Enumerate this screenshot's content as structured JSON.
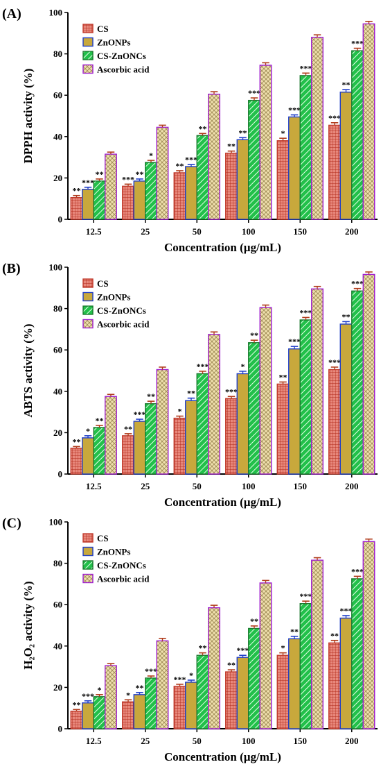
{
  "series_styles": [
    {
      "name": "CS",
      "fill": "#e8887c",
      "edge": "#c0392b",
      "pattern": "grid"
    },
    {
      "name": "ZnONPs",
      "fill": "#c8a83c",
      "edge": "#1f3ec8",
      "pattern": "none"
    },
    {
      "name": "CS-ZnONCs",
      "fill": "#22c04a",
      "edge": "#1a7a2e",
      "pattern": "diag"
    },
    {
      "name": "Ascorbic acid",
      "fill": "#efe0ad",
      "edge": "#a020d0",
      "pattern": "cross"
    }
  ],
  "error_color": "#b03a1a",
  "chart_data": [
    {
      "panel": "(A)",
      "type": "bar",
      "xlabel": "Concentration (µg/mL)",
      "ylabel": "DPPH activity (%)",
      "ylim": [
        0,
        100
      ],
      "yticks": [
        0,
        20,
        40,
        60,
        80,
        100
      ],
      "categories": [
        "12.5",
        "25",
        "50",
        "100",
        "150",
        "200"
      ],
      "legend_position": "top-left",
      "series": [
        {
          "name": "CS",
          "values": [
            10.5,
            16,
            22.5,
            32,
            38,
            45.5
          ],
          "errors": [
            1,
            1,
            1,
            1,
            1.2,
            1.2
          ],
          "sig": [
            "**",
            "***",
            "**",
            "**",
            "*",
            "***"
          ]
        },
        {
          "name": "ZnONPs",
          "values": [
            14.5,
            18.5,
            25.5,
            38.5,
            49.5,
            61.5
          ],
          "errors": [
            1,
            1,
            1,
            1,
            1,
            1.2
          ],
          "sig": [
            "***",
            "**",
            "***",
            "**",
            "***",
            "**"
          ]
        },
        {
          "name": "CS-ZnONCs",
          "values": [
            18.5,
            27.5,
            40.5,
            57.5,
            69.5,
            81.5
          ],
          "errors": [
            1,
            1,
            1,
            1.2,
            1.2,
            1.2
          ],
          "sig": [
            "**",
            "*",
            "**",
            "***",
            "***",
            "***"
          ]
        },
        {
          "name": "Ascorbic acid",
          "values": [
            31.5,
            44.5,
            60.5,
            74.5,
            88,
            94.5
          ],
          "errors": [
            1,
            1,
            1.2,
            1.2,
            1.2,
            1.2
          ],
          "sig": [
            "",
            "",
            "",
            "",
            "",
            ""
          ]
        }
      ]
    },
    {
      "panel": "(B)",
      "type": "bar",
      "xlabel": "Concentration (µg/mL)",
      "ylabel": "ABTS activity (%)",
      "ylim": [
        0,
        100
      ],
      "yticks": [
        0,
        20,
        40,
        60,
        80,
        100
      ],
      "categories": [
        "12.5",
        "25",
        "50",
        "100",
        "150",
        "200"
      ],
      "legend_position": "top-left",
      "series": [
        {
          "name": "CS",
          "values": [
            12.5,
            18.5,
            27,
            36.5,
            43.5,
            50.5
          ],
          "errors": [
            0.8,
            1,
            1,
            1,
            1,
            1.2
          ],
          "sig": [
            "**",
            "**",
            "*",
            "***",
            "**",
            "***"
          ]
        },
        {
          "name": "ZnONPs",
          "values": [
            17.5,
            25.5,
            35.5,
            48.5,
            60.5,
            72.5
          ],
          "errors": [
            1,
            1,
            1.2,
            1.2,
            1.2,
            1.2
          ],
          "sig": [
            "*",
            "***",
            "**",
            "*",
            "***",
            "**"
          ]
        },
        {
          "name": "CS-ZnONCs",
          "values": [
            22.5,
            34,
            48.5,
            63.5,
            74.5,
            88.5
          ],
          "errors": [
            1,
            1.2,
            1.2,
            1.2,
            1.2,
            1.2
          ],
          "sig": [
            "**",
            "**",
            "***",
            "**",
            "***",
            "***"
          ]
        },
        {
          "name": "Ascorbic acid",
          "values": [
            37.5,
            50.5,
            67.5,
            80.5,
            89.5,
            96.5
          ],
          "errors": [
            1,
            1.2,
            1.2,
            1.2,
            1.2,
            1.2
          ],
          "sig": [
            "",
            "",
            "",
            "",
            "",
            ""
          ]
        }
      ]
    },
    {
      "panel": "(C)",
      "type": "bar",
      "xlabel": "Concentration (µg/mL)",
      "ylabel": "H₂O₂ activity (%)",
      "ylim": [
        0,
        100
      ],
      "yticks": [
        0,
        20,
        40,
        60,
        80,
        100
      ],
      "categories": [
        "12.5",
        "25",
        "50",
        "100",
        "150",
        "200"
      ],
      "legend_position": "top-left",
      "series": [
        {
          "name": "CS",
          "values": [
            8.5,
            13,
            20.5,
            27.5,
            35.5,
            41.5
          ],
          "errors": [
            0.8,
            1,
            1,
            1,
            1.2,
            1.2
          ],
          "sig": [
            "**",
            "*",
            "***",
            "**",
            "*",
            "**"
          ]
        },
        {
          "name": "ZnONPs",
          "values": [
            12.5,
            16.5,
            22.5,
            34.5,
            43.5,
            53.5
          ],
          "errors": [
            1,
            1,
            1,
            1,
            1.2,
            1.2
          ],
          "sig": [
            "***",
            "**",
            "*",
            "***",
            "**",
            "***"
          ]
        },
        {
          "name": "CS-ZnONCs",
          "values": [
            15.5,
            24.5,
            35.5,
            48.5,
            60.5,
            72.5
          ],
          "errors": [
            1,
            1,
            1.2,
            1.2,
            1.2,
            1.2
          ],
          "sig": [
            "*",
            "***",
            "**",
            "**",
            "***",
            "***"
          ]
        },
        {
          "name": "Ascorbic acid",
          "values": [
            30.5,
            42.5,
            58.5,
            70.5,
            81.5,
            90.5
          ],
          "errors": [
            1,
            1.2,
            1.2,
            1.2,
            1.2,
            1.2
          ],
          "sig": [
            "",
            "",
            "",
            "",
            "",
            ""
          ]
        }
      ]
    }
  ]
}
